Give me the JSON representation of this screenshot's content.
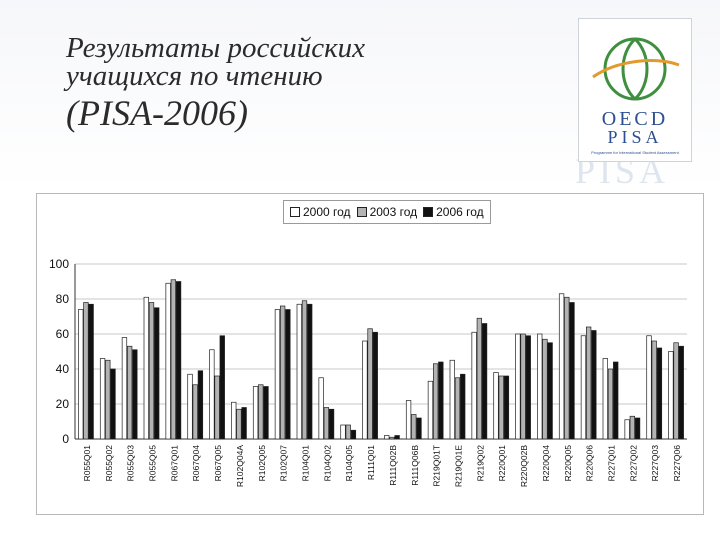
{
  "title": {
    "line1": "Результаты российских",
    "line2": "учащихся по чтению",
    "line3": "(PISA-2006)"
  },
  "logo": {
    "word1": "OECD",
    "word2": "PISA",
    "tagline": "Programme for International Student Assessment"
  },
  "watermark": "PISA",
  "colors": {
    "series_2000": "#ffffff",
    "series_2003": "#b3b3b3",
    "series_2006": "#111111",
    "logo_green": "#3f8f3f",
    "logo_orange": "#e39a2d",
    "logo_blue": "#2e4f8f"
  },
  "chart_data": {
    "type": "bar",
    "title": "",
    "xlabel": "",
    "ylabel": "",
    "ylim": [
      0,
      100
    ],
    "yticks": [
      0,
      20,
      40,
      60,
      80,
      100
    ],
    "grid": true,
    "legend_position": "top",
    "categories": [
      "R055Q01",
      "R055Q02",
      "R055Q03",
      "R055Q05",
      "R067Q01",
      "R067Q04",
      "R067Q05",
      "R102Q04A",
      "R102Q05",
      "R102Q07",
      "R104Q01",
      "R104Q02",
      "R104Q05",
      "R111Q01",
      "R111Q02B",
      "R111Q06B",
      "R219Q01T",
      "R219Q01E",
      "R219Q02",
      "R220Q01",
      "R220Q02B",
      "R220Q04",
      "R220Q05",
      "R220Q06",
      "R227Q01",
      "R227Q02",
      "R227Q03",
      "R227Q06"
    ],
    "series": [
      {
        "name": "2000 год",
        "values": [
          74,
          46,
          58,
          81,
          89,
          37,
          51,
          21,
          30,
          74,
          77,
          35,
          8,
          56,
          2,
          22,
          33,
          45,
          61,
          38,
          60,
          60,
          83,
          59,
          46,
          11,
          59,
          50
        ]
      },
      {
        "name": "2003 год",
        "values": [
          78,
          45,
          53,
          78,
          91,
          31,
          36,
          17,
          31,
          76,
          79,
          18,
          8,
          63,
          1,
          14,
          43,
          35,
          69,
          36,
          60,
          57,
          81,
          64,
          40,
          13,
          56,
          55
        ]
      },
      {
        "name": "2006 год",
        "values": [
          77,
          40,
          51,
          75,
          90,
          39,
          59,
          18,
          30,
          74,
          77,
          17,
          5,
          61,
          2,
          12,
          44,
          37,
          66,
          36,
          59,
          55,
          78,
          62,
          44,
          12,
          52,
          53
        ]
      }
    ]
  }
}
